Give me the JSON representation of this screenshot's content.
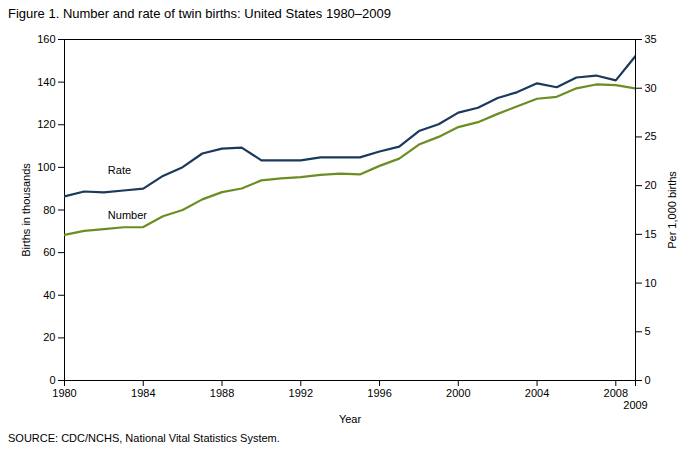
{
  "chart_data": {
    "type": "line",
    "title": "Figure 1. Number and rate of twin births: United States  1980–2009",
    "xlabel": "Year",
    "ylabel": "Births in thousands",
    "y2label": "Per 1,000 births",
    "source": "SOURCE: CDC/NCHS, National Vital Statistics System.",
    "x": [
      1980,
      1981,
      1982,
      1983,
      1984,
      1985,
      1986,
      1987,
      1988,
      1989,
      1990,
      1991,
      1992,
      1993,
      1994,
      1995,
      1996,
      1997,
      1998,
      1999,
      2000,
      2001,
      2002,
      2003,
      2004,
      2005,
      2006,
      2007,
      2008,
      2009
    ],
    "series": [
      {
        "name": "Number",
        "color": "#6b8e23",
        "axis": "y",
        "values": [
          68.3,
          70.2,
          71.0,
          71.9,
          72.0,
          77.1,
          80.0,
          85.0,
          88.4,
          90.1,
          93.9,
          94.8,
          95.4,
          96.5,
          97.1,
          96.7,
          100.7,
          104.1,
          110.7,
          114.3,
          118.9,
          121.2,
          125.1,
          128.7,
          132.2,
          133.1,
          137.1,
          138.9,
          138.6,
          137.0
        ]
      },
      {
        "name": "Rate",
        "color": "#1a3a5c",
        "axis": "y2",
        "values": [
          18.9,
          19.4,
          19.3,
          19.5,
          19.7,
          21.0,
          21.9,
          23.3,
          23.8,
          23.9,
          22.6,
          22.6,
          22.6,
          22.9,
          22.9,
          22.9,
          23.5,
          24.0,
          25.6,
          26.3,
          27.5,
          28.0,
          29.0,
          29.6,
          30.5,
          30.1,
          31.1,
          31.3,
          30.8,
          33.3
        ]
      }
    ],
    "xlim": [
      1980,
      2009
    ],
    "xticks": [
      1980,
      1984,
      1988,
      1992,
      1996,
      2000,
      2004,
      2008,
      2009
    ],
    "ylim": [
      0,
      160
    ],
    "yticks": [
      0,
      20,
      40,
      60,
      80,
      100,
      120,
      140,
      160
    ],
    "y2lim": [
      0,
      35
    ],
    "y2ticks": [
      0,
      5,
      10,
      15,
      20,
      25,
      30,
      35
    ],
    "grid": false,
    "annotations": [
      {
        "text": "Rate",
        "x": 1982.2,
        "y": 97
      },
      {
        "text": "Number",
        "x": 1982.2,
        "y": 76
      }
    ]
  }
}
